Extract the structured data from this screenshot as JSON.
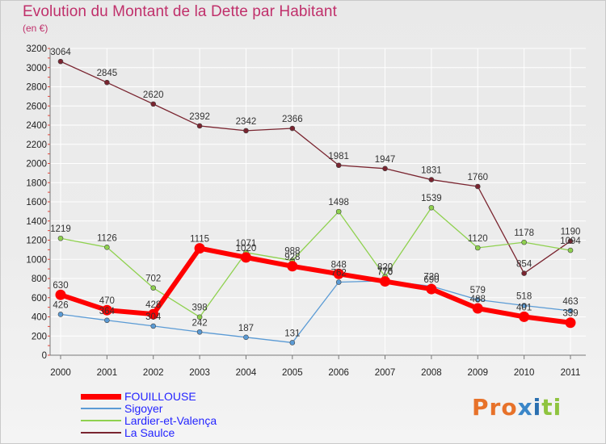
{
  "title": "Evolution du Montant de la Dette par Habitant",
  "subtitle": "(en €)",
  "logo": {
    "text": "Proxiti",
    "parts": [
      "Pro",
      "x",
      "i",
      "ti"
    ]
  },
  "colors": {
    "title": "#c0306b",
    "axis_text": "#222222",
    "grid": "#ffffff",
    "legend_text": "#2424ff"
  },
  "chart_data": {
    "type": "line",
    "title": "Evolution du Montant de la Dette par Habitant",
    "subtitle": "(en €)",
    "xlabel": "",
    "ylabel": "",
    "x": [
      "2000",
      "2001",
      "2002",
      "2003",
      "2004",
      "2005",
      "2006",
      "2007",
      "2008",
      "2009",
      "2010",
      "2011"
    ],
    "ylim": [
      0,
      3200
    ],
    "yticks": [
      0,
      200,
      400,
      600,
      800,
      1000,
      1200,
      1400,
      1600,
      1800,
      2000,
      2200,
      2400,
      2600,
      2800,
      3000,
      3200
    ],
    "grid": true,
    "legend_position": "bottom-left",
    "series": [
      {
        "name": "FOUILLOUSE",
        "color": "#ff0000",
        "values": [
          630,
          470,
          428,
          1115,
          1020,
          928,
          848,
          770,
          690,
          488,
          401,
          339
        ],
        "labels": [
          "630",
          "470",
          "428",
          "1115",
          "1020",
          "928",
          "848",
          "770",
          "690",
          "488",
          "401",
          "339"
        ]
      },
      {
        "name": "Sigoyer",
        "color": "#5b9bd5",
        "values": [
          426,
          364,
          304,
          242,
          187,
          131,
          762,
          776,
          720,
          579,
          518,
          463
        ],
        "labels": [
          "426",
          "364",
          "304",
          "242",
          "187",
          "131",
          "762",
          "776",
          "720",
          "579",
          "518",
          "463"
        ]
      },
      {
        "name": "Lardier-et-Valença",
        "color": "#8fd14f",
        "values": [
          1219,
          1126,
          702,
          398,
          1071,
          988,
          1498,
          820,
          1539,
          1120,
          1178,
          1094
        ],
        "labels": [
          "1219",
          "1126",
          "702",
          "398",
          "1071",
          "988",
          "1498",
          "820",
          "1539",
          "1120",
          "1178",
          "1094"
        ]
      },
      {
        "name": "La Saulce",
        "color": "#7a2530",
        "values": [
          3064,
          2845,
          2620,
          2392,
          2342,
          2366,
          1981,
          1947,
          1831,
          1760,
          854,
          1190
        ],
        "labels": [
          "3064",
          "2845",
          "2620",
          "2392",
          "2342",
          "2366",
          "1981",
          "1947",
          "1831",
          "1760",
          "854",
          "1190"
        ]
      }
    ]
  }
}
